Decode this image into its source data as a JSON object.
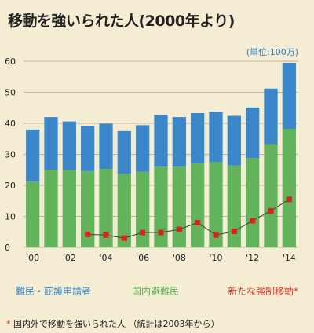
{
  "title": "移動を強いられた人(2000年より)",
  "unit_label": "(単位:100万)",
  "footnote_star": "*",
  "footnote_text": "国内外で移動を強いられた人 （統計は2003年から）",
  "colors": {
    "refugees": "#3a86c8",
    "idps": "#63b25c",
    "newly_displaced": "#d9241c",
    "grid": "#bdb49a",
    "background": "#f5edd3"
  },
  "chart_data": {
    "type": "bar",
    "stacked": true,
    "x": [
      2000,
      2001,
      2002,
      2003,
      2004,
      2005,
      2006,
      2007,
      2008,
      2009,
      2010,
      2011,
      2012,
      2013,
      2014
    ],
    "xtick_labels": [
      "'00",
      "'02",
      "'04",
      "'06",
      "'08",
      "'10",
      "'12",
      "'14"
    ],
    "xtick_years": [
      2000,
      2002,
      2004,
      2006,
      2008,
      2010,
      2012,
      2014
    ],
    "yticks": [
      0,
      10,
      20,
      30,
      40,
      50,
      60
    ],
    "ylim": [
      0,
      60
    ],
    "grid": true,
    "series": [
      {
        "name": "国内避難民",
        "kind": "bar",
        "values": [
          21.2,
          25.0,
          25.0,
          24.6,
          25.3,
          23.7,
          24.4,
          26.0,
          26.0,
          27.1,
          27.5,
          26.4,
          28.8,
          33.3,
          38.2
        ]
      },
      {
        "name": "難民・庇護申請者",
        "kind": "bar",
        "values": [
          16.8,
          17.0,
          15.6,
          14.6,
          14.6,
          13.8,
          15.0,
          16.7,
          16.0,
          16.2,
          16.2,
          16.0,
          16.3,
          17.9,
          21.3
        ]
      },
      {
        "name": "新たな強制移動",
        "kind": "line",
        "star": "*",
        "x": [
          2003,
          2004,
          2005,
          2006,
          2007,
          2008,
          2009,
          2010,
          2011,
          2012,
          2013,
          2014
        ],
        "values": [
          4.2,
          4.0,
          3.0,
          4.8,
          4.8,
          5.8,
          8.0,
          4.0,
          5.2,
          8.6,
          11.8,
          15.5
        ]
      }
    ]
  }
}
